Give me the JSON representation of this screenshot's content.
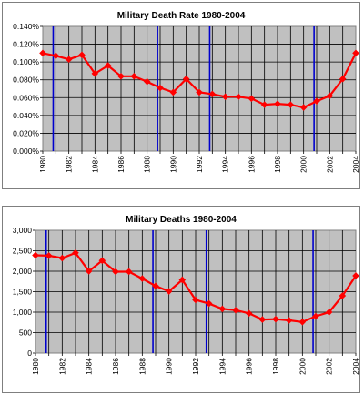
{
  "chart_data": [
    {
      "type": "line",
      "title": "Military Death Rate 1980-2004",
      "x": [
        1980,
        1981,
        1982,
        1983,
        1984,
        1985,
        1986,
        1987,
        1988,
        1989,
        1990,
        1991,
        1992,
        1993,
        1994,
        1995,
        1996,
        1997,
        1998,
        1999,
        2000,
        2001,
        2002,
        2003,
        2004
      ],
      "values": [
        0.11,
        0.107,
        0.103,
        0.108,
        0.087,
        0.096,
        0.084,
        0.084,
        0.078,
        0.071,
        0.066,
        0.081,
        0.066,
        0.064,
        0.061,
        0.061,
        0.059,
        0.052,
        0.053,
        0.052,
        0.049,
        0.056,
        0.062,
        0.081,
        0.11
      ],
      "xlim": [
        1980,
        2004
      ],
      "ylim": [
        0,
        0.14
      ],
      "y_ticks": [
        "0.000%",
        "0.020%",
        "0.040%",
        "0.060%",
        "0.080%",
        "0.100%",
        "0.120%",
        "0.140%"
      ],
      "x_ticks": [
        "1980",
        "1982",
        "1984",
        "1986",
        "1988",
        "1990",
        "1992",
        "1994",
        "1996",
        "1998",
        "2000",
        "2002",
        "2004"
      ],
      "vertical_lines": [
        1980.8,
        1988.8,
        1992.8,
        2000.8
      ],
      "grid": true,
      "plot_background": "#c0c0c0",
      "series_color": "#ff0000",
      "vline_color": "#0000cc"
    },
    {
      "type": "line",
      "title": "Military Deaths 1980-2004",
      "x": [
        1980,
        1981,
        1982,
        1983,
        1984,
        1985,
        1986,
        1987,
        1988,
        1989,
        1990,
        1991,
        1992,
        1993,
        1994,
        1995,
        1996,
        1997,
        1998,
        1999,
        2000,
        2001,
        2002,
        2003,
        2004
      ],
      "values": [
        2390,
        2380,
        2320,
        2450,
        2000,
        2260,
        1990,
        1990,
        1820,
        1640,
        1510,
        1790,
        1300,
        1210,
        1080,
        1050,
        970,
        820,
        830,
        800,
        760,
        900,
        1000,
        1400,
        1890
      ],
      "xlim": [
        1980,
        2004
      ],
      "ylim": [
        0,
        3000
      ],
      "y_ticks": [
        "0",
        "500",
        "1,000",
        "1,500",
        "2,000",
        "2,500",
        "3,000"
      ],
      "x_ticks": [
        "1980",
        "1982",
        "1984",
        "1986",
        "1988",
        "1990",
        "1992",
        "1994",
        "1996",
        "1998",
        "2000",
        "2002",
        "2004"
      ],
      "vertical_lines": [
        1980.8,
        1988.8,
        1992.8,
        2000.8
      ],
      "grid": true,
      "plot_background": "#c0c0c0",
      "series_color": "#ff0000",
      "vline_color": "#0000cc"
    }
  ]
}
